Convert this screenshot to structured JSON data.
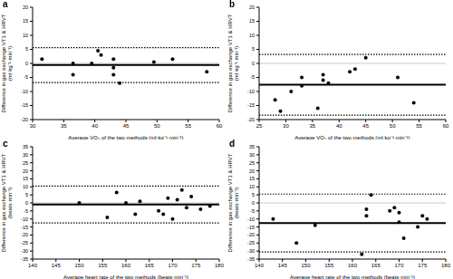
{
  "chart_data": [
    {
      "type": "scatter",
      "title": "a",
      "xlabel": "Average VO₂ of the two methods (ml·kg⁻¹·min⁻¹)",
      "ylabel": "Difference in gas exchange VT1 & HRVT\n(ml·kg⁻¹·min⁻¹)",
      "x": [
        31.5,
        36.5,
        36.5,
        39.5,
        40.5,
        41,
        43,
        43,
        43,
        44,
        49.5,
        52.5,
        58
      ],
      "values": [
        1.5,
        0,
        -4,
        0,
        4.5,
        3,
        1.5,
        -1.5,
        -4,
        -7,
        0.5,
        1.5,
        -3
      ],
      "xlim": [
        30,
        60
      ],
      "xticks": [
        30,
        35,
        40,
        45,
        50,
        55,
        60
      ],
      "ylim": [
        -20,
        20
      ],
      "yticks": [
        -20,
        -15,
        -10,
        -5,
        0,
        5,
        10,
        15,
        20
      ],
      "color": "#000000",
      "marker": "circle",
      "mean_difference": -0.6,
      "limits_of_agreement": [
        5.6,
        -6.8
      ],
      "zero_line": 0
    },
    {
      "type": "scatter",
      "title": "b",
      "xlabel": "Average VO₂ of the two methods (ml·kg⁻¹·min⁻¹)",
      "ylabel": "Difference in gas exchange VT1 & HRVT\n(ml·kg⁻¹·min⁻¹)",
      "x": [
        28,
        29,
        31,
        33,
        33,
        36,
        37,
        37,
        38,
        42,
        43,
        45,
        51,
        54
      ],
      "values": [
        -13,
        -17,
        -10,
        -5,
        -8,
        -16,
        -6,
        -4,
        -7,
        -3,
        -2,
        2,
        -5,
        -14
      ],
      "xlim": [
        25,
        60
      ],
      "xticks": [
        25,
        30,
        35,
        40,
        45,
        50,
        55,
        60
      ],
      "ylim": [
        -20,
        20
      ],
      "yticks": [
        -20,
        -15,
        -10,
        -5,
        0,
        5,
        10,
        15,
        20
      ],
      "color": "#000000",
      "marker": "circle",
      "mean_difference": -7.6,
      "limits_of_agreement": [
        3.2,
        -18.4
      ],
      "zero_line": 0
    },
    {
      "type": "scatter",
      "title": "c",
      "xlabel": "Average heart rate of the two methods (beats·min⁻¹)",
      "ylabel": "Difference in gas exchange VT1 & HRVT\n(beats·min⁻¹)",
      "x": [
        150,
        156,
        158,
        160,
        162,
        163,
        167,
        168,
        169,
        170,
        171,
        172,
        173,
        174,
        176,
        178
      ],
      "values": [
        0,
        -9,
        6.5,
        0,
        -7,
        1,
        -5,
        -7,
        3,
        -10,
        2,
        8,
        -3,
        4,
        -4,
        -2
      ],
      "xlim": [
        140,
        180
      ],
      "xticks": [
        140,
        145,
        150,
        155,
        160,
        165,
        170,
        175,
        180
      ],
      "ylim": [
        -35,
        35
      ],
      "yticks": [
        -35,
        -30,
        -25,
        -20,
        -15,
        -10,
        -5,
        0,
        5,
        10,
        15,
        20,
        25,
        30,
        35
      ],
      "color": "#000000",
      "marker": "circle",
      "mean_difference": -1,
      "limits_of_agreement": [
        10.5,
        -12.5
      ],
      "zero_line": 0
    },
    {
      "type": "scatter",
      "title": "d",
      "xlabel": "Average heart rate of the two methods (beats·min⁻¹)",
      "ylabel": "Difference in gas exchange VT1 & HRVT\n(beats·min⁻¹)",
      "x": [
        143,
        148,
        152,
        162,
        163,
        163,
        164,
        168,
        169,
        170,
        170,
        171,
        174,
        175,
        176
      ],
      "values": [
        -10,
        -25,
        -14,
        -32,
        -8,
        -4,
        5,
        -5,
        -3,
        -6,
        -12,
        -22,
        -15,
        -8,
        -10
      ],
      "xlim": [
        140,
        180
      ],
      "xticks": [
        140,
        145,
        150,
        155,
        160,
        165,
        170,
        175,
        180
      ],
      "ylim": [
        -35,
        35
      ],
      "yticks": [
        -35,
        -30,
        -25,
        -20,
        -15,
        -10,
        -5,
        0,
        5,
        10,
        15,
        20,
        25,
        30,
        35
      ],
      "color": "#000000",
      "marker": "circle",
      "mean_difference": -12.5,
      "limits_of_agreement": [
        5.5,
        -30.5
      ],
      "zero_line": 0
    }
  ]
}
